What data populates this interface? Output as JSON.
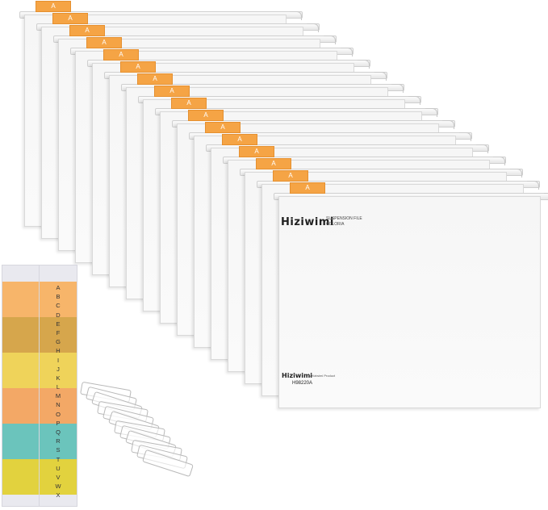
{
  "product": {
    "brand": "Hiziwimi",
    "line1": "SUSPENSION FILE",
    "line2": "COLOR/A",
    "brand_bottom": "Hiziwimi",
    "brand_tag": "A Hiziwimi Product",
    "model": "H98220A"
  },
  "folders": {
    "count": 16,
    "tab_letter": "A",
    "tab_color": "#f5a445"
  },
  "label_strips": {
    "band_colors": [
      "#f7b56a",
      "#d6a64c",
      "#efd35a",
      "#f3a866",
      "#6bc4bc",
      "#e2d23e"
    ],
    "letters": [
      "A",
      "B",
      "C",
      "D",
      "E",
      "F",
      "G",
      "H",
      "I",
      "J",
      "K",
      "L",
      "M",
      "N",
      "O",
      "P",
      "Q",
      "R",
      "S",
      "T",
      "U",
      "V",
      "W",
      "X"
    ]
  },
  "clips": {
    "count": 12
  }
}
